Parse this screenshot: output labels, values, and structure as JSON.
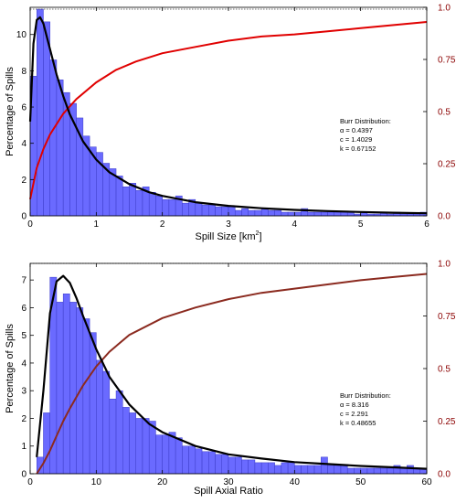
{
  "colors": {
    "bar_fill": "#6a6aff",
    "bar_edge": "#3b3bc8",
    "fit_curve": "#000000",
    "cdf_top": "#e00000",
    "cdf_bottom": "#8b2a1f",
    "right_axis": "#8b0000"
  },
  "chart_data": [
    {
      "type": "bar",
      "xlabel_main": "Spill Size [km",
      "xlabel_sup": "2",
      "xlabel_end": "]",
      "ylabel": "Percentage of Spills",
      "xlim": [
        0,
        6
      ],
      "ylim": [
        0,
        11.5
      ],
      "y2lim": [
        0,
        1
      ],
      "xticks": [
        0,
        1,
        2,
        3,
        4,
        5,
        6
      ],
      "yticks": [
        0,
        2,
        4,
        6,
        8,
        10
      ],
      "y2ticks": [
        0,
        0.25,
        0.5,
        0.75,
        1
      ],
      "y2tick_labels": [
        "0.0",
        "0.25",
        "0.5",
        "0.75",
        "1.0"
      ],
      "dashed_line_y": 11.4,
      "bin_width": 0.1,
      "bin_start": 0.0,
      "values": [
        7.7,
        11.4,
        10.7,
        8.6,
        7.5,
        6.8,
        6.2,
        5.4,
        4.4,
        3.8,
        3.5,
        2.9,
        2.6,
        2.2,
        1.6,
        1.8,
        1.4,
        1.6,
        1.3,
        1.1,
        0.9,
        0.9,
        1.1,
        0.7,
        0.9,
        0.7,
        0.6,
        0.6,
        0.5,
        0.5,
        0.5,
        0.3,
        0.4,
        0.3,
        0.3,
        0.4,
        0.3,
        0.3,
        0.2,
        0.2,
        0.2,
        0.4,
        0.2,
        0.2,
        0.2,
        0.2,
        0.2,
        0.2,
        0.2,
        0.1,
        0.2,
        0.1,
        0.1,
        0.2,
        0.1,
        0.2,
        0.1,
        0.1,
        0.1,
        0.2
      ],
      "fit_curve": {
        "x": [
          0.0,
          0.05,
          0.1,
          0.15,
          0.2,
          0.3,
          0.4,
          0.5,
          0.6,
          0.8,
          1.0,
          1.2,
          1.5,
          1.8,
          2.0,
          2.5,
          3.0,
          3.5,
          4.0,
          4.5,
          5.0,
          5.5,
          6.0
        ],
        "y": [
          5.2,
          9.5,
          10.8,
          10.95,
          10.6,
          9.2,
          7.8,
          6.6,
          5.6,
          4.1,
          3.1,
          2.4,
          1.75,
          1.3,
          1.1,
          0.75,
          0.55,
          0.42,
          0.33,
          0.26,
          0.21,
          0.17,
          0.14
        ]
      },
      "cdf": {
        "x": [
          0.0,
          0.1,
          0.2,
          0.3,
          0.5,
          0.7,
          1.0,
          1.3,
          1.6,
          2.0,
          2.5,
          3.0,
          3.5,
          4.0,
          4.5,
          5.0,
          5.5,
          6.0
        ],
        "y": [
          0.08,
          0.23,
          0.32,
          0.39,
          0.49,
          0.56,
          0.64,
          0.7,
          0.74,
          0.78,
          0.81,
          0.84,
          0.86,
          0.87,
          0.885,
          0.9,
          0.915,
          0.93
        ]
      },
      "annotation": [
        "Burr Distribution:",
        "α = 0.4397",
        "c = 1.4029",
        "k = 0.67152"
      ]
    },
    {
      "type": "bar",
      "xlabel_main": "Spill Axial Ratio",
      "xlabel_sup": "",
      "xlabel_end": "",
      "ylabel": "Percentage of Spills",
      "xlim": [
        0,
        60
      ],
      "ylim": [
        0,
        7.6
      ],
      "y2lim": [
        0,
        1
      ],
      "xticks": [
        0,
        10,
        20,
        30,
        40,
        50,
        60
      ],
      "yticks": [
        0,
        1,
        2,
        3,
        4,
        5,
        6,
        7
      ],
      "y2ticks": [
        0,
        0.25,
        0.5,
        0.75,
        1
      ],
      "y2tick_labels": [
        "0.0",
        "0.25",
        "0.5",
        "0.75",
        "1.0"
      ],
      "dashed_line_y": 7.6,
      "bin_width": 1,
      "bin_start": 1,
      "values": [
        0.6,
        2.2,
        7.1,
        6.2,
        6.5,
        6.2,
        6.0,
        5.6,
        5.1,
        4.1,
        3.7,
        2.7,
        3.0,
        2.4,
        2.2,
        2.0,
        2.0,
        1.9,
        1.4,
        1.4,
        1.5,
        1.3,
        1.0,
        1.0,
        0.9,
        0.8,
        0.8,
        0.7,
        0.7,
        0.6,
        0.6,
        0.5,
        0.5,
        0.4,
        0.4,
        0.4,
        0.3,
        0.4,
        0.4,
        0.3,
        0.3,
        0.3,
        0.3,
        0.6,
        0.3,
        0.3,
        0.3,
        0.2,
        0.2,
        0.2,
        0.2,
        0.2,
        0.2,
        0.2,
        0.3,
        0.2,
        0.3,
        0.2,
        0.2
      ],
      "fit_curve": {
        "x": [
          1,
          2,
          3,
          4,
          5,
          6,
          7,
          8,
          10,
          12,
          15,
          18,
          20,
          25,
          30,
          35,
          40,
          45,
          50,
          55,
          60
        ],
        "y": [
          0.6,
          3.0,
          5.8,
          6.95,
          7.15,
          6.9,
          6.35,
          5.7,
          4.5,
          3.5,
          2.5,
          1.8,
          1.5,
          1.0,
          0.7,
          0.55,
          0.42,
          0.35,
          0.28,
          0.23,
          0.18
        ]
      },
      "cdf": {
        "x": [
          1,
          2,
          3,
          4,
          5,
          6,
          8,
          10,
          12,
          15,
          20,
          25,
          30,
          35,
          40,
          45,
          50,
          55,
          60
        ],
        "y": [
          0.0,
          0.05,
          0.11,
          0.18,
          0.25,
          0.31,
          0.42,
          0.51,
          0.58,
          0.66,
          0.74,
          0.79,
          0.83,
          0.86,
          0.88,
          0.9,
          0.92,
          0.935,
          0.95
        ]
      },
      "annotation": [
        "Burr Distribution:",
        "α = 8.316",
        "c = 2.291",
        "k = 0.48655"
      ]
    }
  ]
}
